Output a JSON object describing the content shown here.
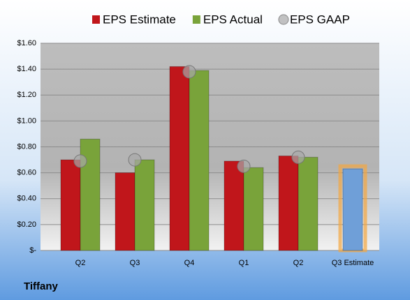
{
  "chart_data": {
    "type": "bar",
    "title": "Tiffany",
    "categories": [
      "Q2",
      "Q3",
      "Q4",
      "Q1",
      "Q2",
      "Q3 Estimate"
    ],
    "series": [
      {
        "name": "EPS Estimate",
        "color": "#c0161b",
        "colors": [
          "#c0161b",
          "#c0161b",
          "#c0161b",
          "#c0161b",
          "#c0161b",
          "#6f9fd8"
        ],
        "values": [
          0.7,
          0.6,
          1.42,
          0.69,
          0.73,
          0.63
        ]
      },
      {
        "name": "EPS Actual",
        "color": "#79a33a",
        "values": [
          0.86,
          0.7,
          1.39,
          0.64,
          0.72,
          null
        ]
      },
      {
        "name": "EPS GAAP",
        "color": "#a8a8a8",
        "type": "scatter",
        "values": [
          0.69,
          0.7,
          1.38,
          0.65,
          0.72,
          null
        ]
      }
    ],
    "ylim": [
      0,
      1.6
    ],
    "yticks": [
      {
        "value": 0,
        "label": "$-"
      },
      {
        "value": 0.2,
        "label": "$0.20"
      },
      {
        "value": 0.4,
        "label": "$0.40"
      },
      {
        "value": 0.6,
        "label": "$0.60"
      },
      {
        "value": 0.8,
        "label": "$0.80"
      },
      {
        "value": 1.0,
        "label": "$1.00"
      },
      {
        "value": 1.2,
        "label": "$1.20"
      },
      {
        "value": 1.4,
        "label": "$1.40"
      },
      {
        "value": 1.6,
        "label": "$1.60"
      }
    ],
    "grid": true,
    "legend": "top"
  }
}
